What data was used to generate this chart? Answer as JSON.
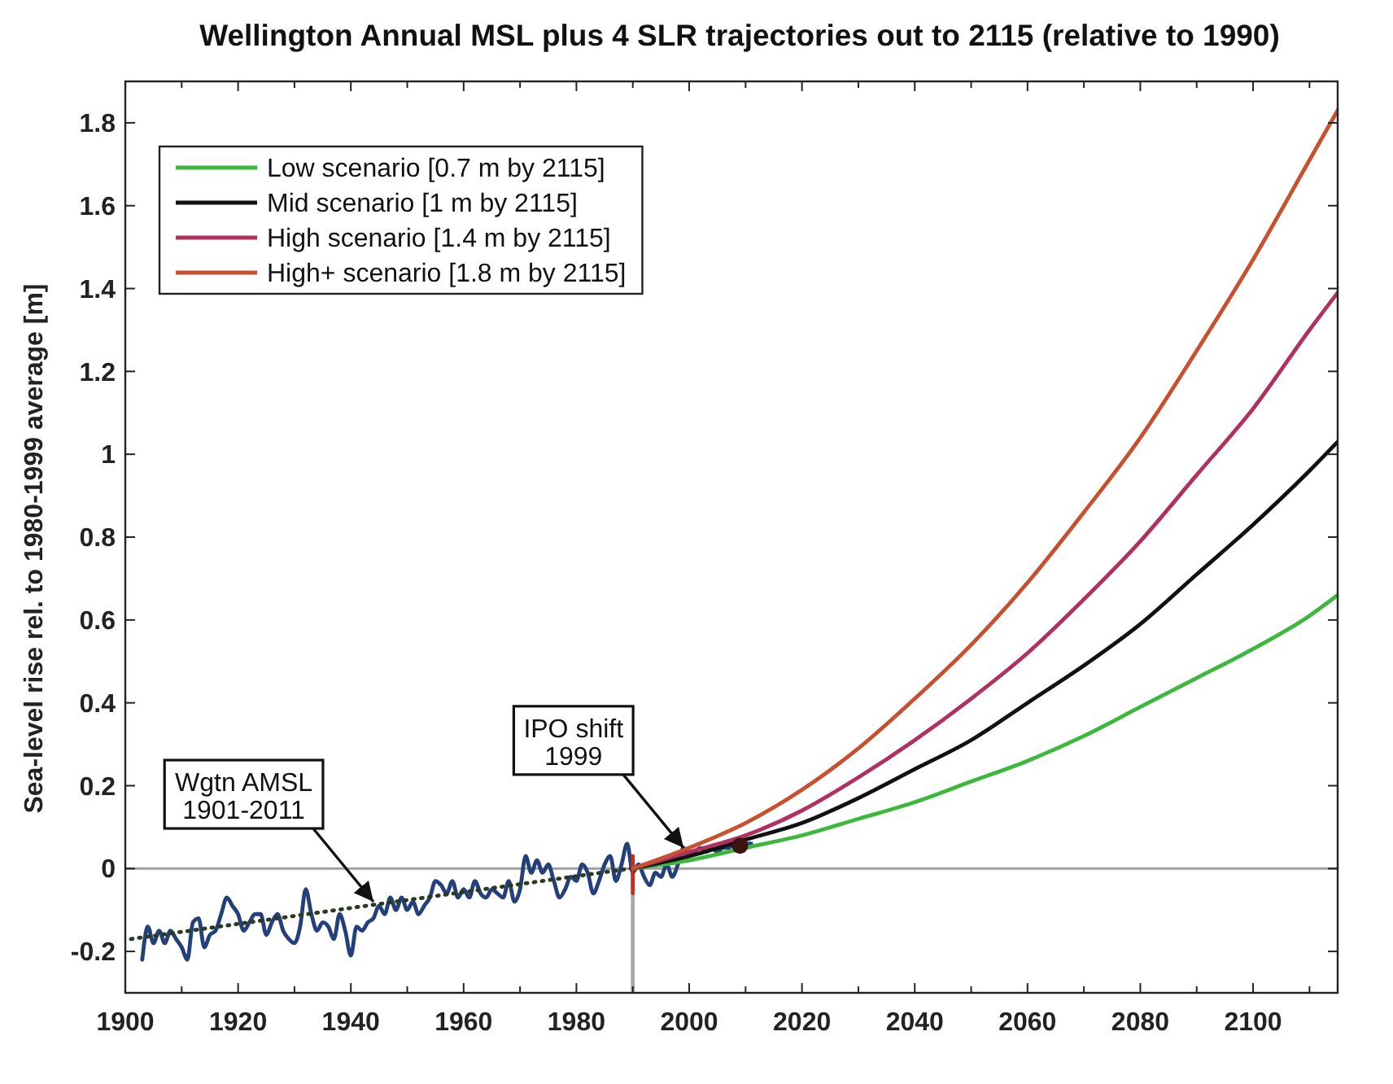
{
  "chart_data": {
    "type": "line",
    "title": "Wellington Annual MSL plus 4 SLR trajectories out to 2115 (relative to 1990)",
    "ylabel": "Sea-level rise rel. to 1980-1999 average [m]",
    "xlim": [
      1900,
      2115
    ],
    "xticks": [
      1900,
      {
        "value": 1910,
        "label": null
      },
      1920,
      {
        "value": 1930,
        "label": null
      },
      1940,
      {
        "value": 1950,
        "label": null
      },
      1960,
      {
        "value": 1970,
        "label": null
      },
      1980,
      {
        "value": 1990,
        "label": null
      },
      2000,
      {
        "value": 2010,
        "label": null
      },
      2020,
      {
        "value": 2030,
        "label": null
      },
      2040,
      {
        "value": 2050,
        "label": null
      },
      2060,
      {
        "value": 2070,
        "label": null
      },
      2080,
      {
        "value": 2090,
        "label": null
      },
      2100,
      {
        "value": 2110,
        "label": null
      }
    ],
    "ylim": [
      -0.3,
      1.9
    ],
    "yticks": [
      -0.2,
      0,
      0.2,
      0.4,
      0.6,
      0.8,
      1,
      1.2,
      1.4,
      1.6,
      1.8
    ],
    "legend": "top left",
    "ref_lines": [
      {
        "axis": "y",
        "value": 0,
        "color": "#a0a0a0"
      }
    ],
    "annotations": [
      {
        "text": "Wgtn AMSL\n1901-2011",
        "x": 1944,
        "y": -0.08
      },
      {
        "text": "IPO shift\n1999",
        "x": 1999,
        "y": 0.05
      }
    ],
    "series": [
      {
        "type": "line",
        "color": "#a8a8a8",
        "x": [
          1990,
          1990
        ],
        "values": [
          -0.3,
          0
        ]
      },
      {
        "type": "line",
        "color": "#24407a",
        "x": [
          1903,
          1904,
          1905,
          1906,
          1907,
          1908,
          1909,
          1910,
          1911,
          1912,
          1913,
          1914,
          1915,
          1916,
          1917,
          1918,
          1919,
          1920,
          1921,
          1922,
          1923,
          1924,
          1925,
          1926,
          1927,
          1928,
          1929,
          1930,
          1931,
          1932,
          1933,
          1934,
          1935,
          1936,
          1937,
          1938,
          1939,
          1940,
          1941,
          1942,
          1943,
          1944,
          1945,
          1946,
          1947,
          1948,
          1949,
          1950,
          1951,
          1952,
          1953,
          1954,
          1955,
          1956,
          1957,
          1958,
          1959,
          1960,
          1961,
          1962,
          1963,
          1964,
          1965,
          1966,
          1967,
          1968,
          1969,
          1970,
          1971,
          1972,
          1973,
          1974,
          1975,
          1976,
          1977,
          1978,
          1979,
          1980,
          1981,
          1982,
          1983,
          1984,
          1985,
          1986,
          1987,
          1988,
          1989,
          1990,
          1991,
          1992,
          1993,
          1994,
          1995,
          1996,
          1997,
          1998,
          1999,
          2000,
          2001,
          2002,
          2003,
          2004,
          2005,
          2006,
          2007,
          2008,
          2009,
          2010,
          2011
        ],
        "values": [
          -0.22,
          -0.14,
          -0.18,
          -0.15,
          -0.18,
          -0.15,
          -0.17,
          -0.19,
          -0.22,
          -0.13,
          -0.12,
          -0.19,
          -0.16,
          -0.15,
          -0.11,
          -0.07,
          -0.09,
          -0.11,
          -0.15,
          -0.13,
          -0.11,
          -0.11,
          -0.16,
          -0.13,
          -0.11,
          -0.15,
          -0.17,
          -0.18,
          -0.14,
          -0.05,
          -0.11,
          -0.15,
          -0.13,
          -0.14,
          -0.17,
          -0.11,
          -0.15,
          -0.21,
          -0.14,
          -0.15,
          -0.13,
          -0.12,
          -0.09,
          -0.11,
          -0.07,
          -0.1,
          -0.07,
          -0.1,
          -0.08,
          -0.11,
          -0.09,
          -0.07,
          -0.03,
          -0.04,
          -0.06,
          -0.03,
          -0.07,
          -0.05,
          -0.07,
          -0.03,
          -0.06,
          -0.07,
          -0.05,
          -0.06,
          -0.07,
          -0.03,
          -0.08,
          -0.05,
          0.03,
          -0.01,
          0.02,
          -0.01,
          0.01,
          -0.03,
          -0.07,
          -0.05,
          -0.02,
          -0.03,
          0.01,
          -0.01,
          -0.06,
          -0.03,
          0.01,
          0.03,
          -0.03,
          0.01,
          0.06,
          -0.01,
          0.01,
          -0.02,
          -0.04,
          -0.01,
          -0.02,
          0.01,
          -0.02,
          0.01,
          0.05,
          0.03,
          0.04,
          0.05,
          0.04,
          0.05,
          0.04,
          0.05,
          0.05,
          0.06,
          0.05,
          0.06,
          0.06
        ]
      },
      {
        "type": "line",
        "color": "#2a3a20",
        "line_style": "dotted",
        "x": [
          1901,
          2000
        ],
        "values": [
          -0.17,
          0.02
        ]
      },
      {
        "type": "line",
        "color": "#c03020",
        "x": [
          1990,
          1990
        ],
        "values": [
          -0.06,
          0.03
        ]
      },
      {
        "type": "line",
        "name": "Low scenario [0.7 m by 2115]",
        "color": "#3cb83c",
        "x": [
          1990,
          2000,
          2010,
          2020,
          2030,
          2040,
          2050,
          2060,
          2070,
          2080,
          2090,
          2100,
          2110,
          2115
        ],
        "values": [
          0,
          0.02,
          0.05,
          0.08,
          0.12,
          0.16,
          0.21,
          0.26,
          0.32,
          0.39,
          0.46,
          0.53,
          0.61,
          0.66
        ]
      },
      {
        "type": "line",
        "name": "Mid scenario [1 m by 2115]",
        "color": "#111111",
        "x": [
          1990,
          2000,
          2010,
          2020,
          2030,
          2040,
          2050,
          2060,
          2070,
          2080,
          2090,
          2100,
          2110,
          2115
        ],
        "values": [
          0,
          0.03,
          0.07,
          0.11,
          0.17,
          0.24,
          0.31,
          0.4,
          0.49,
          0.59,
          0.71,
          0.83,
          0.96,
          1.03
        ]
      },
      {
        "type": "line",
        "name": "High scenario [1.4 m by 2115]",
        "color": "#b0305e",
        "x": [
          1990,
          2000,
          2010,
          2020,
          2030,
          2040,
          2050,
          2060,
          2070,
          2080,
          2090,
          2100,
          2110,
          2115
        ],
        "values": [
          0,
          0.04,
          0.08,
          0.14,
          0.22,
          0.31,
          0.41,
          0.52,
          0.65,
          0.79,
          0.95,
          1.11,
          1.3,
          1.39
        ]
      },
      {
        "type": "line",
        "name": "High+ scenario [1.8 m by 2115]",
        "color": "#c8502e",
        "x": [
          1990,
          2000,
          2010,
          2020,
          2030,
          2040,
          2050,
          2060,
          2070,
          2080,
          2090,
          2100,
          2110,
          2115
        ],
        "values": [
          0,
          0.05,
          0.11,
          0.19,
          0.29,
          0.41,
          0.54,
          0.69,
          0.86,
          1.04,
          1.25,
          1.47,
          1.71,
          1.83
        ]
      },
      {
        "type": "scatter",
        "marker": "circle",
        "color": "#3a1510",
        "x": [
          2009
        ],
        "values": [
          0.055
        ]
      }
    ]
  }
}
